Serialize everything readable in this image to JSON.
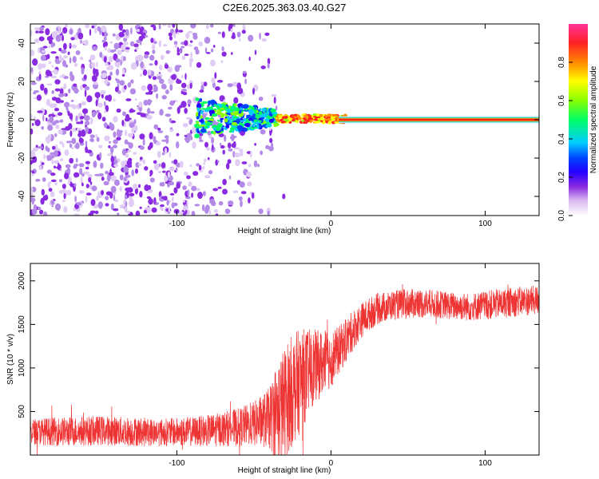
{
  "title": "C2E6.2025.363.03.40.G27",
  "colors": {
    "snr_line": "#ee3333",
    "frame": "#000000",
    "colormap": [
      "#ffffff",
      "#d8b8f0",
      "#8a2be2",
      "#2200ff",
      "#0044ff",
      "#00ccff",
      "#00ff66",
      "#88ff00",
      "#ffff00",
      "#ff8800",
      "#ff2222",
      "#ff3399"
    ]
  },
  "chart_data": [
    {
      "type": "heatmap",
      "title": "",
      "xlabel": "Height of straight line (km)",
      "ylabel": "Frequency (Hz)",
      "xlim": [
        -195,
        135
      ],
      "ylim": [
        -50,
        50
      ],
      "xticks": [
        -100,
        0,
        100
      ],
      "xtick_labels": [
        "-100",
        "0",
        "100"
      ],
      "yticks": [
        -40,
        -20,
        0,
        20,
        40
      ],
      "ytick_labels": [
        "-40",
        "-20",
        "0",
        "20",
        "40"
      ],
      "colorbar": {
        "label": "Normalized spectral amplitude",
        "range": [
          0,
          1
        ],
        "ticks": [
          0,
          0.2,
          0.4,
          0.6,
          0.8
        ],
        "tick_labels": [
          "0.0",
          "0.2",
          "0.4",
          "0.6",
          "0.8"
        ]
      },
      "regions": [
        {
          "x": [
            -195,
            -35
          ],
          "y": [
            -50,
            50
          ],
          "amplitude": "0.0-0.15",
          "pattern": "scattered noise speckle"
        },
        {
          "x": [
            -87,
            -35
          ],
          "y": [
            -10,
            10
          ],
          "amplitude": "0.2-0.5",
          "pattern": "noisy carrier blobs"
        },
        {
          "x": [
            -35,
            10
          ],
          "y": [
            -3,
            3
          ],
          "amplitude": "0.5-0.9",
          "pattern": "converging tone"
        },
        {
          "x": [
            10,
            135
          ],
          "y": [
            -1,
            1
          ],
          "amplitude": "0.9-1.0",
          "pattern": "stable tone"
        }
      ]
    },
    {
      "type": "line",
      "title": "",
      "xlabel": "Height of straight line (km)",
      "ylabel": "SNR (10 * v/v)",
      "xlim": [
        -195,
        135
      ],
      "ylim": [
        0,
        2200
      ],
      "xticks": [
        -100,
        0,
        100
      ],
      "xtick_labels": [
        "-100",
        "0",
        "100"
      ],
      "yticks": [
        500,
        1000,
        1500,
        2000
      ],
      "ytick_labels": [
        "500",
        "1000",
        "1500",
        "2000"
      ],
      "series": [
        {
          "x": [
            -195,
            -170,
            -150,
            -130,
            -110,
            -90,
            -80,
            -70,
            -60,
            -50,
            -40,
            -35,
            -30,
            -25,
            -20,
            -15,
            -10,
            -5,
            0,
            5,
            10,
            15,
            20,
            25,
            30,
            40,
            50,
            60,
            70,
            80,
            90,
            100,
            110,
            120,
            135
          ],
          "values": [
            270,
            270,
            280,
            270,
            260,
            270,
            280,
            300,
            320,
            360,
            420,
            500,
            600,
            750,
            850,
            950,
            1020,
            1060,
            1100,
            1200,
            1320,
            1450,
            1550,
            1620,
            1680,
            1720,
            1740,
            1740,
            1730,
            1710,
            1700,
            1720,
            1740,
            1760,
            1780
          ],
          "spread": [
            150,
            170,
            170,
            170,
            160,
            170,
            180,
            200,
            220,
            260,
            350,
            600,
            650,
            650,
            600,
            500,
            420,
            380,
            330,
            280,
            250,
            230,
            200,
            190,
            180,
            170,
            170,
            170,
            160,
            160,
            160,
            170,
            170,
            170,
            170
          ]
        }
      ]
    }
  ]
}
